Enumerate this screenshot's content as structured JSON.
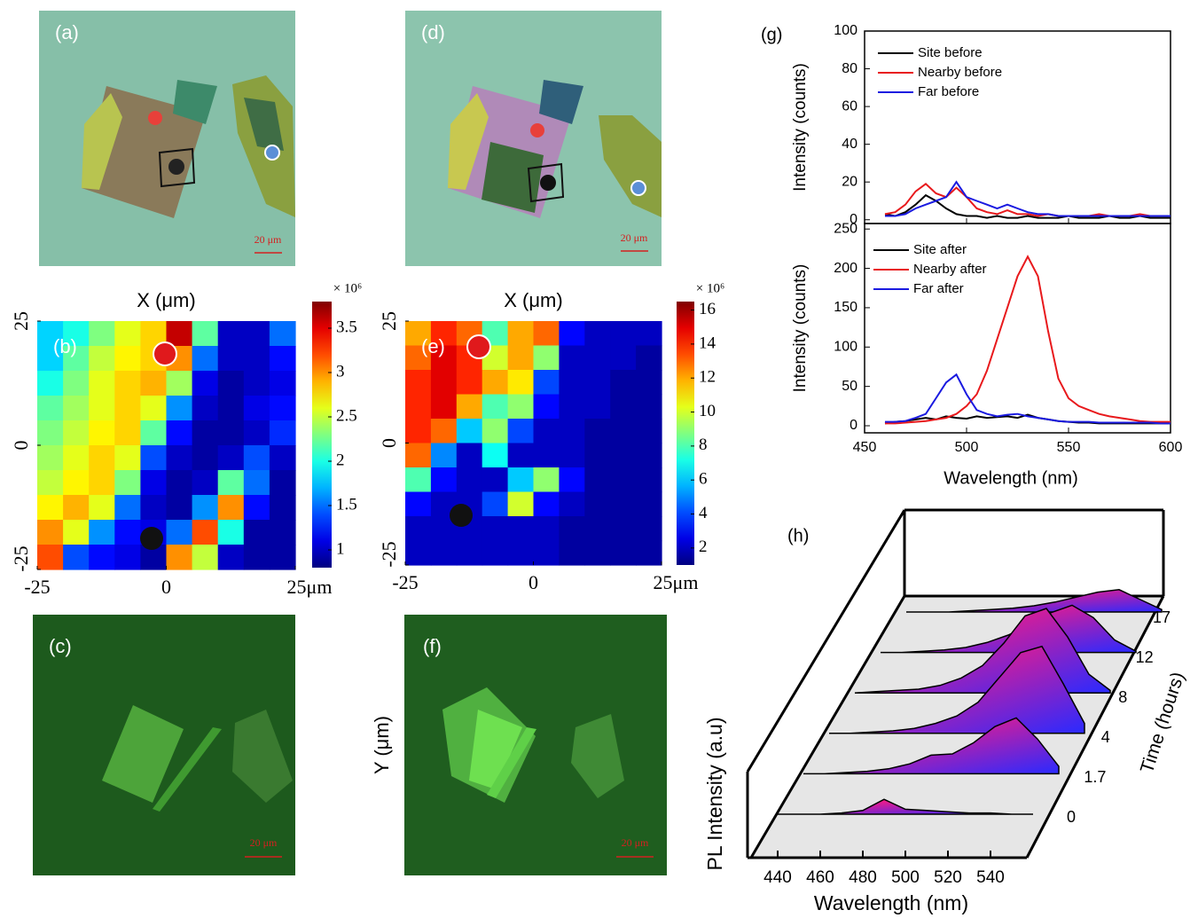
{
  "panels": [
    {
      "label": "(a)",
      "scale_bar": "20 μm"
    },
    {
      "label": "(d)",
      "scale_bar": "20 μm"
    },
    {
      "label": "(c)",
      "scale_bar": "20 μm"
    },
    {
      "label": "(f)",
      "scale_bar": "20 μm"
    }
  ],
  "chart_data": [
    {
      "type": "heatmap",
      "label": "(b)",
      "title": "X (μm)",
      "xlim": [
        -25,
        25
      ],
      "xticks": [
        -25,
        0,
        {
          "value": 25,
          "label": "25μm"
        }
      ],
      "ylim": [
        -25,
        25
      ],
      "yticks": [
        -25,
        0,
        25
      ],
      "colormap": "jet",
      "colorbar_multiplier": "× 10⁶",
      "clim": [
        0.8,
        3.8
      ],
      "cticks": [
        1,
        1.5,
        2,
        2.5,
        3,
        3.5
      ],
      "values": [
        [
          1.8,
          2.0,
          2.3,
          2.6,
          2.8,
          3.6,
          2.2,
          1.0,
          1.0,
          1.5
        ],
        [
          1.8,
          2.2,
          2.5,
          2.7,
          2.8,
          3.0,
          1.5,
          1.0,
          1.0,
          1.2
        ],
        [
          2.0,
          2.3,
          2.6,
          2.8,
          2.9,
          2.4,
          1.1,
          0.9,
          1.0,
          1.1
        ],
        [
          2.2,
          2.4,
          2.6,
          2.8,
          2.6,
          1.6,
          1.0,
          0.9,
          1.1,
          1.2
        ],
        [
          2.3,
          2.5,
          2.7,
          2.8,
          2.2,
          1.2,
          0.9,
          0.9,
          1.0,
          1.3
        ],
        [
          2.4,
          2.6,
          2.8,
          2.6,
          1.4,
          1.0,
          0.9,
          1.0,
          1.4,
          1.0
        ],
        [
          2.5,
          2.7,
          2.8,
          2.3,
          1.1,
          0.9,
          1.0,
          2.2,
          1.5,
          0.9
        ],
        [
          2.7,
          2.9,
          2.6,
          1.5,
          1.0,
          0.9,
          1.6,
          3.0,
          1.2,
          0.9
        ],
        [
          3.0,
          2.6,
          1.6,
          1.2,
          1.1,
          1.5,
          3.2,
          2.0,
          0.9,
          0.9
        ],
        [
          3.2,
          1.4,
          1.2,
          1.1,
          0.9,
          3.0,
          2.5,
          1.0,
          0.9,
          0.9
        ]
      ]
    },
    {
      "type": "heatmap",
      "label": "(e)",
      "title": "X (μm)",
      "ylabel": "Y (μm)",
      "xlim": [
        -25,
        25
      ],
      "xticks": [
        -25,
        0,
        {
          "value": 25,
          "label": "25μm"
        }
      ],
      "ylim": [
        -25,
        25
      ],
      "yticks": [
        -25,
        0,
        25
      ],
      "colormap": "jet",
      "colorbar_multiplier": "× 10⁶",
      "clim": [
        1,
        16.5
      ],
      "cticks": [
        2,
        4,
        6,
        8,
        10,
        12,
        14,
        16
      ],
      "values": [
        [
          12,
          14,
          13,
          8,
          12,
          13,
          3,
          2,
          2,
          2
        ],
        [
          13,
          15,
          14,
          10,
          12,
          9,
          2,
          2,
          2,
          1.5
        ],
        [
          14,
          15,
          14,
          12,
          11,
          4,
          2,
          2,
          1.5,
          1.5
        ],
        [
          14,
          15,
          12,
          8,
          9,
          3,
          2,
          2,
          1.5,
          1.5
        ],
        [
          14,
          13,
          6,
          9,
          4,
          2,
          2,
          1.5,
          1.5,
          1.5
        ],
        [
          13,
          5,
          2,
          7,
          2,
          2,
          2,
          1.5,
          1.5,
          1.5
        ],
        [
          8,
          3,
          2,
          2,
          6,
          9,
          3,
          1.5,
          1.5,
          1.5
        ],
        [
          3,
          2,
          2,
          4,
          10,
          3,
          2,
          1.5,
          1.5,
          1.5
        ],
        [
          2,
          2,
          2,
          2,
          2,
          2,
          1.5,
          1.5,
          1.5,
          1.5
        ],
        [
          2,
          2,
          2,
          2,
          2,
          2,
          1.5,
          1.5,
          1.5,
          1.5
        ]
      ]
    },
    {
      "type": "line",
      "label": "(g)",
      "xlabel": "Wavelength (nm)",
      "xlim": [
        450,
        600
      ],
      "xticks": [
        450,
        500,
        550,
        600
      ],
      "x": [
        460,
        465,
        470,
        475,
        480,
        485,
        490,
        495,
        500,
        505,
        510,
        515,
        520,
        525,
        530,
        535,
        540,
        545,
        550,
        555,
        560,
        565,
        570,
        575,
        580,
        585,
        590,
        595,
        600
      ],
      "subplots": [
        {
          "ylabel": "Intensity (counts)",
          "ylim": [
            -2,
            100
          ],
          "yticks": [
            0,
            20,
            40,
            60,
            80,
            100
          ],
          "series": [
            {
              "name": "Site before",
              "color": "#000000",
              "values": [
                3,
                2,
                4,
                8,
                13,
                10,
                6,
                3,
                2,
                2,
                1,
                2,
                1,
                1,
                2,
                1,
                1,
                1,
                2,
                1,
                1,
                1,
                2,
                1,
                1,
                2,
                1,
                1,
                1
              ]
            },
            {
              "name": "Nearby before",
              "color": "#e8191c",
              "values": [
                3,
                4,
                8,
                15,
                19,
                14,
                12,
                17,
                12,
                6,
                4,
                3,
                5,
                3,
                3,
                2,
                3,
                2,
                2,
                2,
                2,
                3,
                2,
                2,
                2,
                3,
                2,
                2,
                2
              ]
            },
            {
              "name": "Far before",
              "color": "#1a1ae0",
              "values": [
                2,
                2,
                3,
                6,
                8,
                10,
                12,
                20,
                12,
                10,
                8,
                6,
                8,
                6,
                4,
                3,
                3,
                2,
                2,
                2,
                2,
                2,
                2,
                2,
                2,
                2,
                2,
                2,
                2
              ]
            }
          ]
        },
        {
          "ylabel": "Intensity (counts)",
          "ylim": [
            -9,
            257
          ],
          "yticks": [
            0,
            50,
            100,
            150,
            200,
            250
          ],
          "series": [
            {
              "name": "Site after",
              "color": "#000000",
              "values": [
                3,
                5,
                6,
                8,
                10,
                8,
                12,
                10,
                9,
                12,
                10,
                11,
                12,
                10,
                14,
                10,
                8,
                6,
                5,
                4,
                4,
                3,
                3,
                3,
                3,
                3,
                3,
                3,
                3
              ]
            },
            {
              "name": "Nearby after",
              "color": "#e8191c",
              "values": [
                3,
                3,
                4,
                5,
                6,
                8,
                10,
                15,
                25,
                40,
                70,
                110,
                150,
                190,
                215,
                190,
                120,
                60,
                35,
                25,
                20,
                15,
                12,
                10,
                8,
                6,
                5,
                5,
                5
              ]
            },
            {
              "name": "Far after",
              "color": "#1a1ae0",
              "values": [
                5,
                5,
                6,
                10,
                15,
                35,
                55,
                65,
                40,
                20,
                15,
                12,
                14,
                15,
                12,
                10,
                8,
                6,
                5,
                5,
                5,
                4,
                4,
                4,
                4,
                4,
                4,
                3,
                3
              ]
            }
          ]
        }
      ]
    },
    {
      "type": "waterfall",
      "label": "(h)",
      "xlabel": "Wavelength (nm)",
      "ylabel": "PL Intensity (a.u)",
      "zlabel": "Time (hours)",
      "xlim": [
        430,
        560
      ],
      "xticks": [
        440,
        460,
        480,
        500,
        520,
        540
      ],
      "fill_colors": [
        "#ff1a80",
        "#2a2aff"
      ],
      "x": [
        440,
        450,
        460,
        470,
        480,
        490,
        500,
        510,
        520,
        530,
        540,
        550,
        560
      ],
      "series": [
        {
          "name": "0",
          "values": [
            0,
            0,
            0,
            1,
            3,
            12,
            4,
            3,
            2,
            1,
            1,
            0,
            0
          ]
        },
        {
          "name": "1.7",
          "values": [
            0,
            0,
            1,
            2,
            4,
            8,
            15,
            16,
            25,
            38,
            45,
            28,
            6
          ]
        },
        {
          "name": "4",
          "values": [
            0,
            0,
            1,
            2,
            4,
            8,
            14,
            25,
            45,
            65,
            70,
            40,
            8
          ]
        },
        {
          "name": "8",
          "values": [
            0,
            1,
            2,
            3,
            6,
            12,
            22,
            40,
            62,
            68,
            45,
            15,
            2
          ]
        },
        {
          "name": "12",
          "values": [
            0,
            0,
            1,
            2,
            4,
            8,
            14,
            22,
            32,
            38,
            28,
            10,
            1
          ]
        },
        {
          "name": "17",
          "values": [
            0,
            0,
            0,
            1,
            2,
            3,
            5,
            8,
            12,
            16,
            18,
            10,
            2
          ]
        }
      ]
    }
  ]
}
